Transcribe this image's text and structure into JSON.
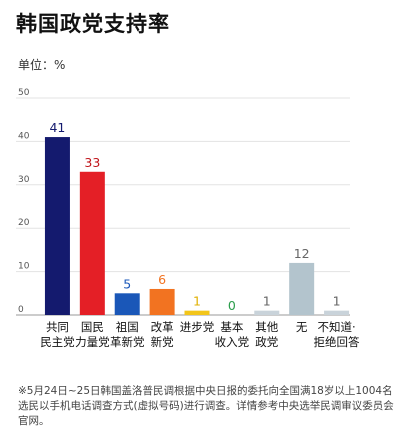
{
  "page": {
    "title": "韩国政党支持率",
    "unit_label": "单位：%",
    "footnote": "※5月24日~25日韩国盖洛普民调根据中央日报的委托向全国满18岁以上1004名选民以手机电话调查方式(虚拟号码)进行调查。详情参考中央选举民调审议委员会官网。"
  },
  "chart_data": {
    "type": "bar",
    "title": "韩国政党支持率",
    "ylabel": "单位：%",
    "ylim": [
      0,
      50
    ],
    "yticks": [
      0,
      10,
      20,
      30,
      40,
      50
    ],
    "grid": true,
    "categories": [
      [
        "共同",
        "民主党"
      ],
      [
        "国民",
        "力量党"
      ],
      [
        "祖国",
        "革新党"
      ],
      [
        "改革",
        "新党"
      ],
      [
        "进步党"
      ],
      [
        "基本",
        "收入党"
      ],
      [
        "其他",
        "政党"
      ],
      [
        "无"
      ],
      [
        "不知道·",
        "拒绝回答"
      ]
    ],
    "values": [
      41,
      33,
      5,
      6,
      1,
      0,
      1,
      12,
      1
    ],
    "bar_colors": [
      "#141a6e",
      "#e41f26",
      "#1a57b8",
      "#f27321",
      "#f2c51a",
      "#cccccc",
      "#c9d3da",
      "#b3c4cd",
      "#c9d3da"
    ],
    "label_colors": [
      "#141a6e",
      "#c0151b",
      "#1a57b8",
      "#f27321",
      "#e0b000",
      "#2a9d4b",
      "#666666",
      "#666666",
      "#666666"
    ]
  }
}
